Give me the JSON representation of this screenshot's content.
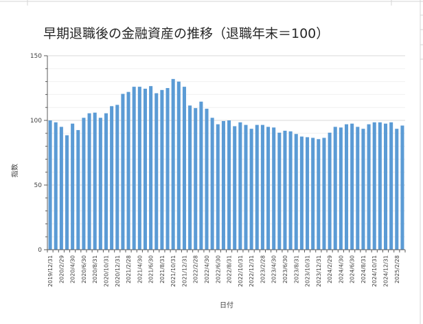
{
  "chart_data": {
    "type": "bar",
    "title": "早期退職後の金融資産の推移（退職年末＝100）",
    "xlabel": "日付",
    "ylabel": "指数",
    "ylim": [
      0,
      150
    ],
    "yticks": [
      0,
      50,
      100,
      150
    ],
    "grid": true,
    "bar_color": "#5b9bd5",
    "categories": [
      "2019/12/31",
      "2020/1/31",
      "2020/2/29",
      "2020/3/31",
      "2020/4/30",
      "2020/5/31",
      "2020/6/30",
      "2020/7/31",
      "2020/8/31",
      "2020/9/30",
      "2020/10/31",
      "2020/11/30",
      "2020/12/31",
      "2021/1/31",
      "2021/2/28",
      "2021/3/31",
      "2021/4/30",
      "2021/5/31",
      "2021/6/30",
      "2021/7/31",
      "2021/8/31",
      "2021/9/30",
      "2021/10/31",
      "2021/11/30",
      "2021/12/31",
      "2022/1/31",
      "2022/2/28",
      "2022/3/31",
      "2022/4/30",
      "2022/5/31",
      "2022/6/30",
      "2022/7/31",
      "2022/8/31",
      "2022/9/30",
      "2022/10/31",
      "2022/11/30",
      "2022/12/31",
      "2023/1/31",
      "2023/2/28",
      "2023/3/31",
      "2023/4/30",
      "2023/5/31",
      "2023/6/30",
      "2023/7/31",
      "2023/8/31",
      "2023/9/30",
      "2023/10/31",
      "2023/11/30",
      "2023/12/31",
      "2024/1/31",
      "2024/2/29",
      "2024/3/31",
      "2024/4/30",
      "2024/5/31",
      "2024/6/30",
      "2024/7/31",
      "2024/8/31",
      "2024/9/30",
      "2024/10/31",
      "2024/11/30",
      "2024/12/31",
      "2025/1/31",
      "2025/2/28",
      "2025/3/31"
    ],
    "tick_labels": [
      "2019/12/31",
      "2020/2/29",
      "2020/4/30",
      "2020/6/30",
      "2020/8/31",
      "2020/10/31",
      "2020/12/31",
      "2021/2/28",
      "2021/4/30",
      "2021/6/30",
      "2021/8/31",
      "2021/10/31",
      "2021/12/31",
      "2022/2/28",
      "2022/4/30",
      "2022/6/30",
      "2022/8/31",
      "2022/10/31",
      "2022/12/31",
      "2023/2/28",
      "2023/4/30",
      "2023/6/30",
      "2023/8/31",
      "2023/10/31",
      "2023/12/31",
      "2024/2/29",
      "2024/4/30",
      "2024/6/30",
      "2024/8/31",
      "2024/10/31",
      "2024/12/31",
      "2025/2/28"
    ],
    "values": [
      100,
      98.5,
      95,
      88.5,
      97.5,
      92.5,
      102,
      105.5,
      106,
      102,
      105.5,
      111,
      112,
      120.5,
      122,
      126,
      126,
      124.5,
      126.5,
      121,
      123.5,
      125,
      132,
      130,
      126,
      111.5,
      109.5,
      114.5,
      109,
      102,
      97,
      99.5,
      100,
      95.5,
      98.5,
      96.5,
      93.5,
      96.5,
      96.5,
      95,
      94.5,
      90.5,
      92,
      91.5,
      89.5,
      87.5,
      87,
      86.5,
      85.5,
      86.5,
      90.5,
      95,
      94.5,
      97,
      97.5,
      95,
      93.5,
      97,
      98.5,
      98.5,
      97.5,
      98.5,
      93.5,
      96
    ]
  }
}
